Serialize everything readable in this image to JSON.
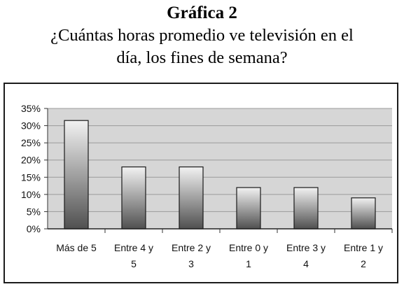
{
  "figure": {
    "title": "Gráfica 2",
    "subtitle_line1": "¿Cuántas horas promedio ve televisión en el",
    "subtitle_line2": "día, los fines de semana?"
  },
  "chart_data": {
    "type": "bar",
    "categories": [
      [
        "Más de 5"
      ],
      [
        "Entre 4 y",
        "5"
      ],
      [
        "Entre 2 y",
        "3"
      ],
      [
        "Entre 0 y",
        "1"
      ],
      [
        "Entre 3 y",
        "4"
      ],
      [
        "Entre 1 y",
        "2"
      ]
    ],
    "values": [
      31.5,
      18,
      18,
      12,
      12,
      9
    ],
    "yticks": [
      "0%",
      "5%",
      "10%",
      "15%",
      "20%",
      "25%",
      "30%",
      "35%"
    ],
    "ylim": [
      0,
      35
    ],
    "grid": true,
    "legend": "none",
    "colors": {
      "plot_bg": "#d6d6d6",
      "grid": "#9a9a9a",
      "bar_top": "#f2f2f2",
      "bar_bottom": "#505050",
      "bar_edge": "#1a1a1a"
    }
  }
}
